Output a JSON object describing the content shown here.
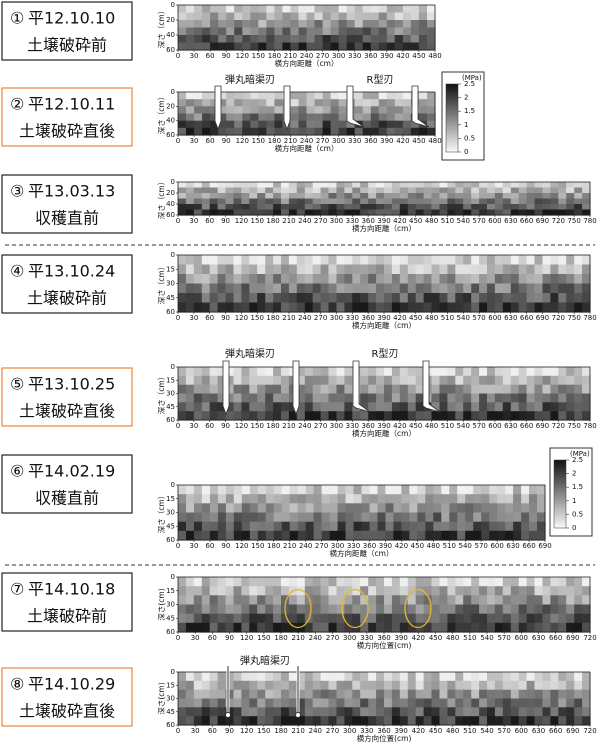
{
  "panels": [
    {
      "number": "①",
      "date": "平12.10.10",
      "condition": "土壌破砕前",
      "highlighted": false,
      "x_label": "横方向距離（cm）",
      "y_label": "深さ（cm）",
      "xticks": [
        0,
        30,
        60,
        90,
        120,
        150,
        180,
        210,
        240,
        270,
        300,
        330,
        360,
        390,
        420,
        450,
        480
      ],
      "yticks": [
        0,
        20,
        40,
        60
      ],
      "annotations": []
    },
    {
      "number": "②",
      "date": "平12.10.11",
      "condition": "土壌破砕直後",
      "highlighted": true,
      "x_label": "横方向距離（cm）",
      "y_label": "深さ（cm）",
      "xticks": [
        0,
        30,
        60,
        90,
        120,
        150,
        180,
        210,
        240,
        270,
        300,
        330,
        360,
        390,
        420,
        450,
        480
      ],
      "yticks": [
        0,
        20,
        40,
        60
      ],
      "annotations": [
        "弾丸暗渠刃",
        "R型刃"
      ]
    },
    {
      "number": "③",
      "date": "平13.03.13",
      "condition": "収穫直前",
      "highlighted": false,
      "x_label": "横方向距離（cm）",
      "y_label": "深さ（cm）",
      "xticks": [
        0,
        30,
        60,
        90,
        120,
        150,
        180,
        210,
        240,
        270,
        300,
        330,
        360,
        390,
        420,
        450,
        480,
        510,
        540,
        570,
        600,
        630,
        660,
        690,
        720,
        750,
        780
      ],
      "yticks": [
        0,
        20,
        40,
        60
      ],
      "annotations": []
    },
    {
      "number": "④",
      "date": "平13.10.24",
      "condition": "土壌破砕前",
      "highlighted": false,
      "x_label": "横方向距離（cm）",
      "y_label": "深さ（cm）",
      "xticks": [
        0,
        30,
        60,
        90,
        120,
        150,
        180,
        210,
        240,
        270,
        300,
        330,
        360,
        390,
        420,
        450,
        480,
        510,
        540,
        570,
        600,
        630,
        660,
        690,
        720,
        750,
        780
      ],
      "yticks": [
        0,
        15,
        30,
        45,
        60
      ],
      "annotations": []
    },
    {
      "number": "⑤",
      "date": "平13.10.25",
      "condition": "土壌破砕直後",
      "highlighted": true,
      "x_label": "横方向距離（cm）",
      "y_label": "深さ（cm）",
      "xticks": [
        0,
        30,
        60,
        90,
        120,
        150,
        180,
        210,
        240,
        270,
        300,
        330,
        360,
        390,
        420,
        450,
        480,
        510,
        540,
        570,
        600,
        630,
        660,
        690,
        720,
        750,
        780
      ],
      "yticks": [
        0,
        15,
        30,
        45,
        60
      ],
      "annotations": [
        "弾丸暗渠刃",
        "R型刃"
      ]
    },
    {
      "number": "⑥",
      "date": "平14.02.19",
      "condition": "収穫直前",
      "highlighted": false,
      "x_label": "横方向距離（cm）",
      "y_label": "深さ（cm）",
      "xticks": [
        0,
        30,
        60,
        90,
        120,
        150,
        180,
        210,
        240,
        270,
        300,
        330,
        360,
        390,
        420,
        450,
        480,
        510,
        540,
        570,
        600,
        630,
        660,
        690
      ],
      "yticks": [
        0,
        15,
        30,
        45,
        60
      ],
      "annotations": []
    },
    {
      "number": "⑦",
      "date": "平14.10.18",
      "condition": "土壌破砕前",
      "highlighted": false,
      "x_label": "横方向位置(cm)",
      "y_label": "深さ(cm)",
      "xticks": [
        0,
        30,
        60,
        90,
        120,
        150,
        180,
        210,
        240,
        270,
        300,
        330,
        360,
        390,
        420,
        450,
        480,
        510,
        540,
        570,
        600,
        630,
        660,
        690,
        720
      ],
      "yticks": [
        0,
        15,
        30,
        45,
        60
      ],
      "annotations": []
    },
    {
      "number": "⑧",
      "date": "平14.10.29",
      "condition": "土壌破砕直後",
      "highlighted": true,
      "x_label": "横方向位置(cm)",
      "y_label": "深さ(cm)",
      "xticks": [
        0,
        30,
        60,
        90,
        120,
        150,
        180,
        210,
        240,
        270,
        300,
        330,
        360,
        390,
        420,
        450,
        480,
        510,
        540,
        570,
        600,
        630,
        660,
        690,
        720
      ],
      "yticks": [
        0,
        15,
        30,
        45,
        60
      ],
      "annotations": [
        "弾丸暗渠刃"
      ]
    }
  ],
  "legends": [
    {
      "title": "(MPa)",
      "ticks": [
        2.5,
        2,
        1.5,
        1,
        0.5,
        0
      ]
    },
    {
      "title": "(MPa)",
      "ticks": [
        2.5,
        2,
        1.5,
        1,
        0.5,
        0
      ]
    }
  ]
}
